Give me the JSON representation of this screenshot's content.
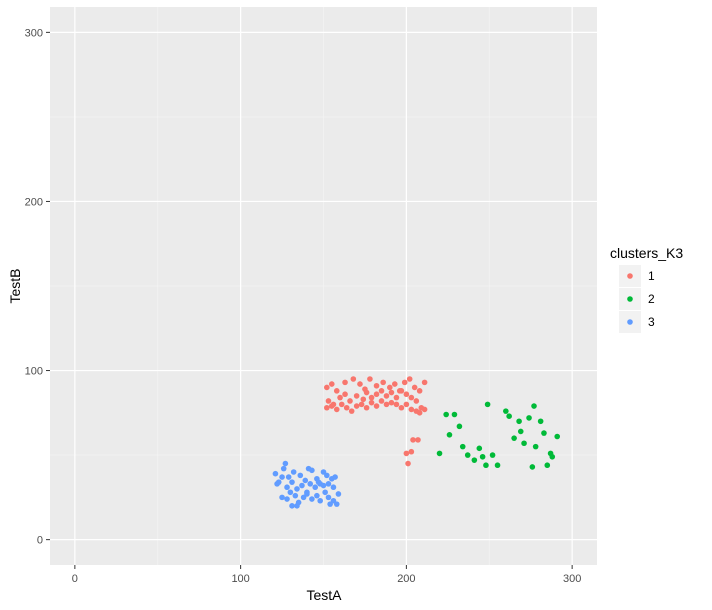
{
  "chart_data": {
    "type": "scatter",
    "xlabel": "TestA",
    "ylabel": "TestB",
    "xlim": [
      -15,
      315
    ],
    "ylim": [
      -15,
      315
    ],
    "x_ticks": [
      0,
      100,
      200,
      300
    ],
    "y_ticks": [
      0,
      100,
      200,
      300
    ],
    "x_tick_labels": [
      "0",
      "100",
      "200",
      "300"
    ],
    "y_tick_labels": [
      "0",
      "100",
      "200",
      "300"
    ],
    "grid": true,
    "background": "#EBEBEB",
    "legend": {
      "title": "clusters_K3",
      "position": "right"
    },
    "series": [
      {
        "name": "1",
        "color": "#F8766D",
        "points": [
          [
            152,
            90
          ],
          [
            155,
            92
          ],
          [
            158,
            88
          ],
          [
            163,
            93
          ],
          [
            168,
            95
          ],
          [
            172,
            92
          ],
          [
            175,
            89
          ],
          [
            178,
            95
          ],
          [
            182,
            91
          ],
          [
            186,
            93
          ],
          [
            190,
            90
          ],
          [
            193,
            92
          ],
          [
            196,
            88
          ],
          [
            199,
            93
          ],
          [
            202,
            95
          ],
          [
            205,
            90
          ],
          [
            208,
            88
          ],
          [
            211,
            93
          ],
          [
            153,
            82
          ],
          [
            156,
            80
          ],
          [
            160,
            84
          ],
          [
            163,
            86
          ],
          [
            166,
            82
          ],
          [
            170,
            85
          ],
          [
            174,
            83
          ],
          [
            176,
            87
          ],
          [
            179,
            84
          ],
          [
            182,
            86
          ],
          [
            185,
            88
          ],
          [
            188,
            85
          ],
          [
            191,
            87
          ],
          [
            194,
            84
          ],
          [
            197,
            88
          ],
          [
            200,
            86
          ],
          [
            203,
            84
          ],
          [
            206,
            82
          ],
          [
            152,
            78
          ],
          [
            155,
            79
          ],
          [
            158,
            77
          ],
          [
            161,
            80
          ],
          [
            164,
            78
          ],
          [
            167,
            76
          ],
          [
            170,
            79
          ],
          [
            173,
            80
          ],
          [
            176,
            78
          ],
          [
            179,
            81
          ],
          [
            182,
            79
          ],
          [
            185,
            82
          ],
          [
            188,
            80
          ],
          [
            191,
            81
          ],
          [
            194,
            80
          ],
          [
            197,
            78
          ],
          [
            200,
            80
          ],
          [
            203,
            77
          ],
          [
            206,
            76
          ],
          [
            209,
            78
          ],
          [
            211,
            77
          ],
          [
            208,
            75
          ],
          [
            204,
            59
          ],
          [
            207,
            59
          ],
          [
            200,
            51
          ],
          [
            201,
            45
          ],
          [
            203,
            52
          ]
        ]
      },
      {
        "name": "2",
        "color": "#00BA38",
        "points": [
          [
            220,
            51
          ],
          [
            224,
            74
          ],
          [
            226,
            62
          ],
          [
            229,
            74
          ],
          [
            232,
            67
          ],
          [
            234,
            55
          ],
          [
            237,
            50
          ],
          [
            241,
            47
          ],
          [
            244,
            54
          ],
          [
            246,
            49
          ],
          [
            248,
            44
          ],
          [
            249,
            80
          ],
          [
            252,
            50
          ],
          [
            255,
            44
          ],
          [
            260,
            76
          ],
          [
            262,
            73
          ],
          [
            265,
            60
          ],
          [
            268,
            70
          ],
          [
            269,
            64
          ],
          [
            271,
            57
          ],
          [
            274,
            72
          ],
          [
            276,
            43
          ],
          [
            277,
            79
          ],
          [
            278,
            55
          ],
          [
            281,
            70
          ],
          [
            283,
            63
          ],
          [
            285,
            44
          ],
          [
            287,
            51
          ],
          [
            288,
            49
          ],
          [
            291,
            61
          ]
        ]
      },
      {
        "name": "3",
        "color": "#619CFF",
        "points": [
          [
            121,
            39
          ],
          [
            123,
            34
          ],
          [
            126,
            42
          ],
          [
            127,
            45
          ],
          [
            129,
            37
          ],
          [
            132,
            40
          ],
          [
            136,
            38
          ],
          [
            139,
            35
          ],
          [
            141,
            42
          ],
          [
            143,
            41
          ],
          [
            146,
            36
          ],
          [
            148,
            33
          ],
          [
            150,
            40
          ],
          [
            152,
            38
          ],
          [
            155,
            36
          ],
          [
            157,
            37
          ],
          [
            122,
            33
          ],
          [
            125,
            37
          ],
          [
            128,
            31
          ],
          [
            131,
            34
          ],
          [
            134,
            30
          ],
          [
            137,
            32
          ],
          [
            140,
            28
          ],
          [
            142,
            33
          ],
          [
            145,
            31
          ],
          [
            147,
            34
          ],
          [
            150,
            32
          ],
          [
            153,
            33
          ],
          [
            156,
            31
          ],
          [
            125,
            25
          ],
          [
            128,
            24
          ],
          [
            131,
            20
          ],
          [
            133,
            26
          ],
          [
            135,
            22
          ],
          [
            138,
            25
          ],
          [
            140,
            27
          ],
          [
            143,
            24
          ],
          [
            146,
            26
          ],
          [
            148,
            23
          ],
          [
            151,
            28
          ],
          [
            153,
            25
          ],
          [
            156,
            23
          ],
          [
            158,
            21
          ],
          [
            159,
            27
          ],
          [
            134,
            20
          ],
          [
            130,
            28
          ],
          [
            154,
            21
          ]
        ]
      }
    ]
  }
}
